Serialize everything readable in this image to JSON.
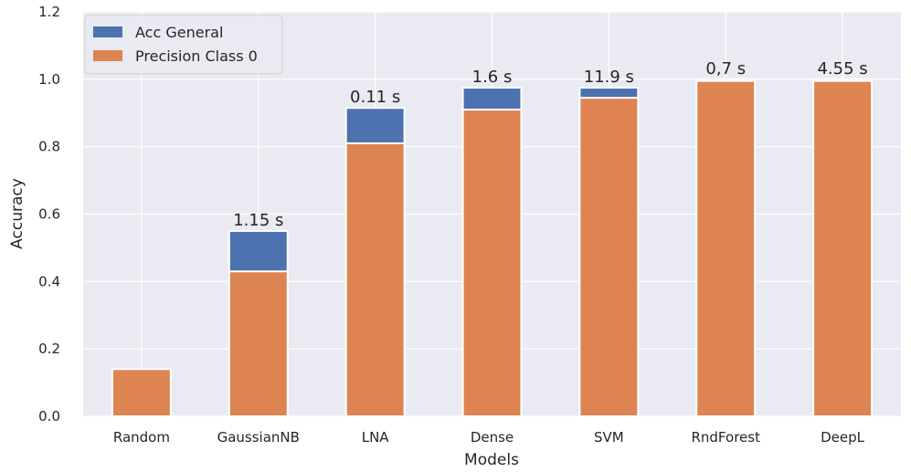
{
  "chart_data": {
    "type": "bar",
    "title": "",
    "xlabel": "Models",
    "ylabel": "Accuracy",
    "ylim": [
      0,
      1.2
    ],
    "yticks": [
      "0.0",
      "0.2",
      "0.4",
      "0.6",
      "0.8",
      "1.0",
      "1.2"
    ],
    "categories": [
      "Random",
      "GaussianNB",
      "LNA",
      "Dense",
      "SVM",
      "RndForest",
      "DeepL"
    ],
    "series": [
      {
        "name": "Acc General",
        "color": "#4c72b0",
        "values": [
          0.14,
          0.55,
          0.915,
          0.975,
          0.975,
          1.0,
          1.0
        ]
      },
      {
        "name": "Precision Class 0",
        "color": "#dd8452",
        "values": [
          0.14,
          0.43,
          0.81,
          0.91,
          0.945,
          0.995,
          0.995
        ]
      }
    ],
    "bar_labels": [
      "",
      "1.15 s",
      "0.11 s",
      "1.6 s",
      "11.9 s",
      "0,7 s",
      "4.55 s"
    ],
    "grid": true,
    "legend_position": "top-left",
    "background_color": "#eaeaf2"
  }
}
